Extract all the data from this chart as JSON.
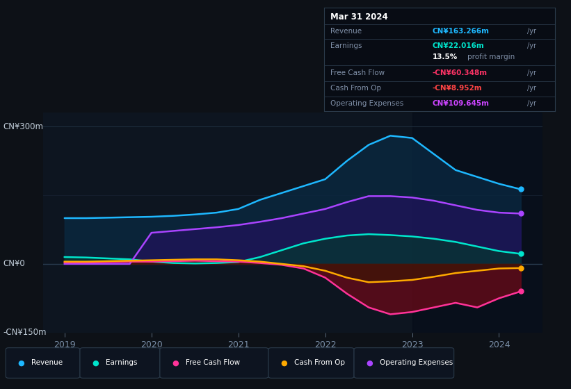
{
  "bg_color": "#0d1117",
  "chart_bg": "#0d1520",
  "title": "Mar 31 2024",
  "ylabel_top": "CN¥300m",
  "ylabel_zero": "CN¥0",
  "ylabel_bottom": "-CN¥150m",
  "ylim": [
    -150,
    330
  ],
  "xlim_start": 2018.75,
  "xlim_end": 2024.5,
  "xticks": [
    2019,
    2020,
    2021,
    2022,
    2023,
    2024
  ],
  "series": {
    "Revenue": {
      "color": "#1eb8ff",
      "fill_color": "#0a2d4a"
    },
    "Earnings": {
      "color": "#00e5cc",
      "fill_color": "#063030"
    },
    "FreeCashFlow": {
      "color": "#ff3399",
      "fill_color": "#6b0a18"
    },
    "CashFromOp": {
      "color": "#ffaa00",
      "fill_color": "#3a2000"
    },
    "OperatingExpenses": {
      "color": "#aa44ff",
      "fill_color": "#251050"
    }
  },
  "tooltip": {
    "date": "Mar 31 2024",
    "Revenue_label": "Revenue",
    "Revenue_value": "CN¥163.266m",
    "Revenue_color": "#1eb8ff",
    "Earnings_label": "Earnings",
    "Earnings_value": "CN¥22.016m",
    "Earnings_color": "#00e5cc",
    "FreeCashFlow_label": "Free Cash Flow",
    "FreeCashFlow_value": "-CN¥60.348m",
    "FreeCashFlow_color": "#ff3366",
    "CashFromOp_label": "Cash From Op",
    "CashFromOp_value": "-CN¥8.952m",
    "CashFromOp_color": "#ff4444",
    "OpEx_label": "Operating Expenses",
    "OpEx_value": "CN¥109.645m",
    "OpEx_color": "#cc44ff"
  },
  "legend": [
    {
      "label": "Revenue",
      "color": "#1eb8ff"
    },
    {
      "label": "Earnings",
      "color": "#00e5cc"
    },
    {
      "label": "Free Cash Flow",
      "color": "#ff3399"
    },
    {
      "label": "Cash From Op",
      "color": "#ffaa00"
    },
    {
      "label": "Operating Expenses",
      "color": "#aa44ff"
    }
  ],
  "shade_start_x": 2023.0,
  "shade_end_x": 2024.5,
  "x": [
    2019.0,
    2019.25,
    2019.5,
    2019.75,
    2020.0,
    2020.25,
    2020.5,
    2020.75,
    2021.0,
    2021.25,
    2021.5,
    2021.75,
    2022.0,
    2022.25,
    2022.5,
    2022.75,
    2023.0,
    2023.25,
    2023.5,
    2023.75,
    2024.0,
    2024.25
  ],
  "revenue": [
    100,
    100,
    101,
    102,
    103,
    105,
    108,
    112,
    120,
    140,
    155,
    170,
    185,
    225,
    260,
    280,
    275,
    240,
    205,
    190,
    175,
    163
  ],
  "earnings": [
    15,
    14,
    12,
    10,
    5,
    2,
    1,
    2,
    4,
    15,
    30,
    45,
    55,
    62,
    65,
    63,
    60,
    55,
    48,
    38,
    28,
    22
  ],
  "op_expenses": [
    0,
    0,
    0,
    0,
    68,
    72,
    76,
    80,
    85,
    92,
    100,
    110,
    120,
    135,
    148,
    148,
    145,
    138,
    128,
    118,
    112,
    110
  ],
  "free_cf": [
    3,
    3,
    4,
    5,
    5,
    6,
    7,
    6,
    5,
    2,
    -2,
    -10,
    -30,
    -65,
    -95,
    -110,
    -105,
    -95,
    -85,
    -95,
    -75,
    -60
  ],
  "cash_op": [
    5,
    5,
    6,
    7,
    8,
    9,
    10,
    10,
    8,
    5,
    0,
    -5,
    -15,
    -30,
    -40,
    -38,
    -35,
    -28,
    -20,
    -15,
    -10,
    -9
  ]
}
